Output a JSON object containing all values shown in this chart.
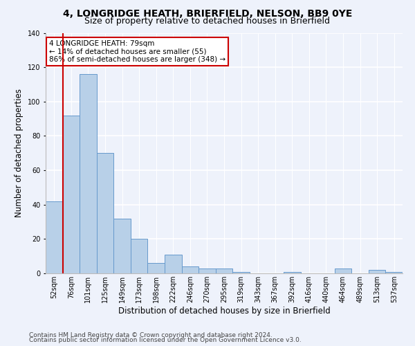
{
  "title": "4, LONGRIDGE HEATH, BRIERFIELD, NELSON, BB9 0YE",
  "subtitle": "Size of property relative to detached houses in Brierfield",
  "xlabel": "Distribution of detached houses by size in Brierfield",
  "ylabel": "Number of detached properties",
  "categories": [
    "52sqm",
    "76sqm",
    "101sqm",
    "125sqm",
    "149sqm",
    "173sqm",
    "198sqm",
    "222sqm",
    "246sqm",
    "270sqm",
    "295sqm",
    "319sqm",
    "343sqm",
    "367sqm",
    "392sqm",
    "416sqm",
    "440sqm",
    "464sqm",
    "489sqm",
    "513sqm",
    "537sqm"
  ],
  "values": [
    42,
    92,
    116,
    70,
    32,
    20,
    6,
    11,
    4,
    3,
    3,
    1,
    0,
    0,
    1,
    0,
    0,
    3,
    0,
    2,
    1
  ],
  "bar_color": "#b8d0e8",
  "bar_edge_color": "#6699cc",
  "property_line_color": "#cc0000",
  "property_bin_index": 1,
  "annotation_line1": "4 LONGRIDGE HEATH: 79sqm",
  "annotation_line2": "← 14% of detached houses are smaller (55)",
  "annotation_line3": "86% of semi-detached houses are larger (348) →",
  "annotation_box_color": "#ffffff",
  "annotation_box_edge_color": "#cc0000",
  "ylim": [
    0,
    140
  ],
  "yticks": [
    0,
    20,
    40,
    60,
    80,
    100,
    120,
    140
  ],
  "background_color": "#eef2fb",
  "grid_color": "#ffffff",
  "footer_line1": "Contains HM Land Registry data © Crown copyright and database right 2024.",
  "footer_line2": "Contains public sector information licensed under the Open Government Licence v3.0.",
  "title_fontsize": 10,
  "subtitle_fontsize": 9,
  "xlabel_fontsize": 8.5,
  "ylabel_fontsize": 8.5,
  "tick_fontsize": 7,
  "annotation_fontsize": 7.5,
  "footer_fontsize": 6.5
}
